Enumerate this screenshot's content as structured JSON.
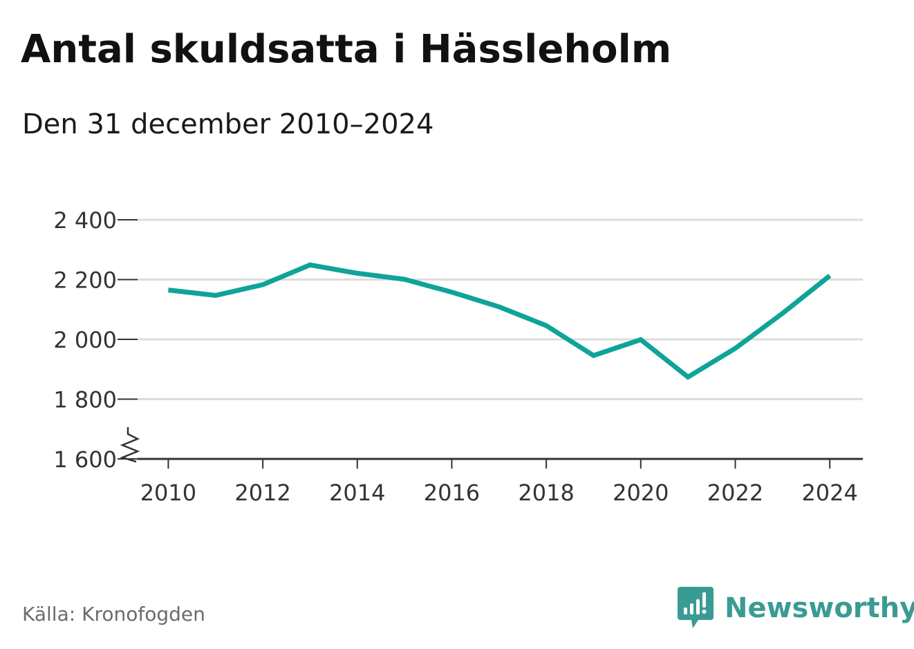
{
  "title": "Antal skuldsatta i Hässleholm",
  "subtitle": "Den 31 december 2010–2024",
  "source": "Källa: Kronofogden",
  "brand": {
    "name": "Newsworthy",
    "icon": "newsworthy-logo-icon",
    "color": "#3a9b94"
  },
  "colors": {
    "line": "#0fa399",
    "grid": "#dcdcdc",
    "axis": "#333333",
    "text": "#333333"
  },
  "chart_data": {
    "type": "line",
    "title": "Antal skuldsatta i Hässleholm",
    "subtitle": "Den 31 december 2010–2024",
    "xlabel": "",
    "ylabel": "",
    "x": [
      2010,
      2011,
      2012,
      2013,
      2014,
      2015,
      2016,
      2017,
      2018,
      2019,
      2020,
      2021,
      2022,
      2023,
      2024
    ],
    "series": [
      {
        "values": [
          2165,
          2147,
          2183,
          2249,
          2221,
          2201,
          2158,
          2109,
          2046,
          1946,
          1999,
          1874,
          1970,
          2087,
          2213
        ]
      }
    ],
    "xticks": [
      2010,
      2012,
      2014,
      2016,
      2018,
      2020,
      2022,
      2024
    ],
    "xtick_labels": [
      "2010",
      "2012",
      "2014",
      "2016",
      "2018",
      "2020",
      "2022",
      "2024"
    ],
    "yticks": [
      1600,
      1800,
      2000,
      2200,
      2400
    ],
    "ytick_labels": [
      "1 600",
      "1 800",
      "2 000",
      "2 200",
      "2 400"
    ],
    "ylim": [
      1600,
      2400
    ],
    "xlim": [
      2009.35,
      2024.7
    ],
    "y_axis_break": true,
    "grid": true,
    "legend": "none"
  }
}
